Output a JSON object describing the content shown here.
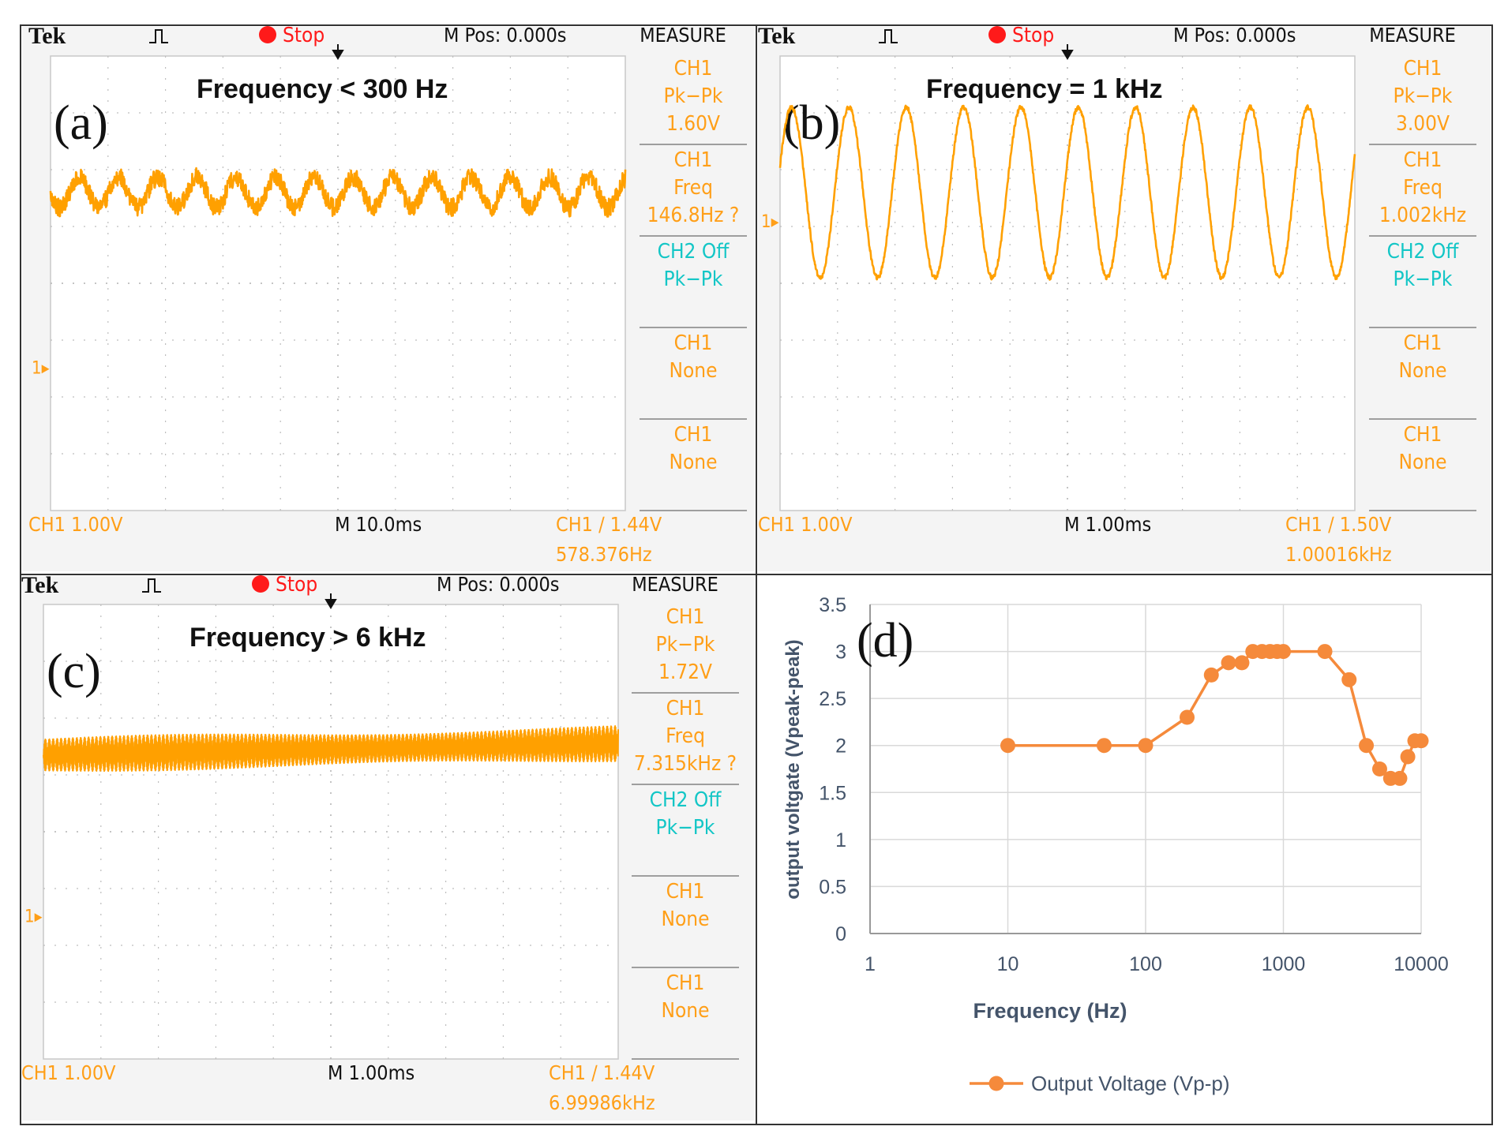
{
  "colors": {
    "trace": "#ffa000",
    "measure_label": "#ff9f18",
    "ch2": "#13c6c6",
    "stop_dot": "#ff1a1a",
    "grid": "#bdbdbd",
    "screen_bg": "#ffffff",
    "panel_bg": "#e8e8e8",
    "series_orange": "#f58a3b",
    "axis_text": "#44546a",
    "axis_title": "#44546a"
  },
  "scopes": [
    {
      "panel_label": "(a)",
      "brand": "Tek",
      "run_state": "Stop",
      "mpos": "M Pos: 0.000s",
      "measure_title": "MEASURE",
      "annotation": "Frequency < 300 Hz",
      "measures": [
        {
          "ch": "CH1",
          "name": "Pk−Pk",
          "value": "1.60V",
          "kind": "ch1"
        },
        {
          "ch": "CH1",
          "name": "Freq",
          "value": "146.8Hz ?",
          "kind": "ch1"
        },
        {
          "ch": "CH2 Off",
          "name": "Pk−Pk",
          "value": "",
          "kind": "ch2"
        },
        {
          "ch": "CH1",
          "name": "None",
          "value": "",
          "kind": "ch1"
        },
        {
          "ch": "CH1",
          "name": "None",
          "value": "",
          "kind": "ch1"
        }
      ],
      "ch1_scale": "CH1  1.00V",
      "timebase": "M 10.0ms",
      "trigger": "CH1 ∕ 1.44V",
      "trigger_freq": "578.376Hz",
      "ch1_marker": "1▸",
      "wave": {
        "signal_frequency_hz": 146.8,
        "center_div": 1.6,
        "amplitude_div": 0.27,
        "noise_div": 0.16,
        "time_per_div_ms": 10,
        "sweep_offset_div": 0.35,
        "ch1_marker_div": -0.2
      }
    },
    {
      "panel_label": "(b)",
      "brand": "Tek",
      "run_state": "Stop",
      "mpos": "M Pos: 0.000s",
      "measure_title": "MEASURE",
      "annotation": "Frequency = 1 kHz",
      "measures": [
        {
          "ch": "CH1",
          "name": "Pk−Pk",
          "value": "3.00V",
          "kind": "ch1"
        },
        {
          "ch": "CH1",
          "name": "Freq",
          "value": "1.002kHz",
          "kind": "ch1"
        },
        {
          "ch": "CH2 Off",
          "name": "Pk−Pk",
          "value": "",
          "kind": "ch2"
        },
        {
          "ch": "CH1",
          "name": "None",
          "value": "",
          "kind": "ch1"
        },
        {
          "ch": "CH1",
          "name": "None",
          "value": "",
          "kind": "ch1"
        }
      ],
      "ch1_scale": "CH1  1.00V",
      "timebase": "M 1.00ms",
      "trigger": "CH1 ∕ 1.50V",
      "trigger_freq": "1.00016kHz",
      "ch1_marker": "1▸",
      "wave": {
        "signal_frequency_hz": 1002,
        "center_div": 1.6,
        "amplitude_div": 1.5,
        "noise_div": 0.04,
        "time_per_div_ms": 1,
        "sweep_offset_div": 0.05,
        "ch1_marker_div": 0.15
      }
    },
    {
      "panel_label": "(c)",
      "brand": "Tek",
      "run_state": "Stop",
      "mpos": "M Pos: 0.000s",
      "measure_title": "MEASURE",
      "annotation": "Frequency > 6 kHz",
      "measures": [
        {
          "ch": "CH1",
          "name": "Pk−Pk",
          "value": "1.72V",
          "kind": "ch1"
        },
        {
          "ch": "CH1",
          "name": "Freq",
          "value": "7.315kHz ?",
          "kind": "ch1"
        },
        {
          "ch": "CH2 Off",
          "name": "Pk−Pk",
          "value": "",
          "kind": "ch2"
        },
        {
          "ch": "CH1",
          "name": "None",
          "value": "",
          "kind": "ch1"
        },
        {
          "ch": "CH1",
          "name": "None",
          "value": "",
          "kind": "ch1"
        }
      ],
      "ch1_scale": "CH1  1.00V",
      "timebase": "M 1.00ms",
      "trigger": "CH1 ∕ 1.44V",
      "trigger_freq": "6.99986kHz",
      "ch1_marker": "1▸",
      "wave": {
        "signal_frequency_hz": 7315,
        "center_div": 1.35,
        "amplitude_div": 0.72,
        "noise_div": 0.05,
        "time_per_div_ms": 1,
        "sweep_offset_div": 0.0,
        "ch1_marker_div": -0.2
      }
    }
  ],
  "chart_data": {
    "type": "line",
    "panel_label": "(d)",
    "title": "",
    "xlabel": "Frequency (Hz)",
    "ylabel": "output voltgate (Vpeak-peak)",
    "xscale": "log",
    "xlim": [
      1,
      10000
    ],
    "ylim": [
      0,
      3.5
    ],
    "xticks": [
      1,
      10,
      100,
      1000,
      10000
    ],
    "xtick_labels": [
      "1",
      "10",
      "100",
      "1000",
      "10000"
    ],
    "yticks": [
      0,
      0.5,
      1,
      1.5,
      2,
      2.5,
      3,
      3.5
    ],
    "ytick_labels": [
      "0",
      "0.5",
      "1",
      "1.5",
      "2",
      "2.5",
      "3",
      "3.5"
    ],
    "grid": true,
    "legend_position": "bottom",
    "series": [
      {
        "name": "Output Voltage  (Vp-p)",
        "x": [
          10,
          50,
          100,
          200,
          300,
          400,
          500,
          600,
          700,
          800,
          900,
          1000,
          2000,
          3000,
          4000,
          5000,
          6000,
          7000,
          8000,
          9000,
          10000
        ],
        "values": [
          2.0,
          2.0,
          2.0,
          2.3,
          2.75,
          2.88,
          2.88,
          3.0,
          3.0,
          3.0,
          3.0,
          3.0,
          3.0,
          2.7,
          2.0,
          1.75,
          1.65,
          1.65,
          1.88,
          2.05,
          2.05
        ]
      }
    ]
  }
}
